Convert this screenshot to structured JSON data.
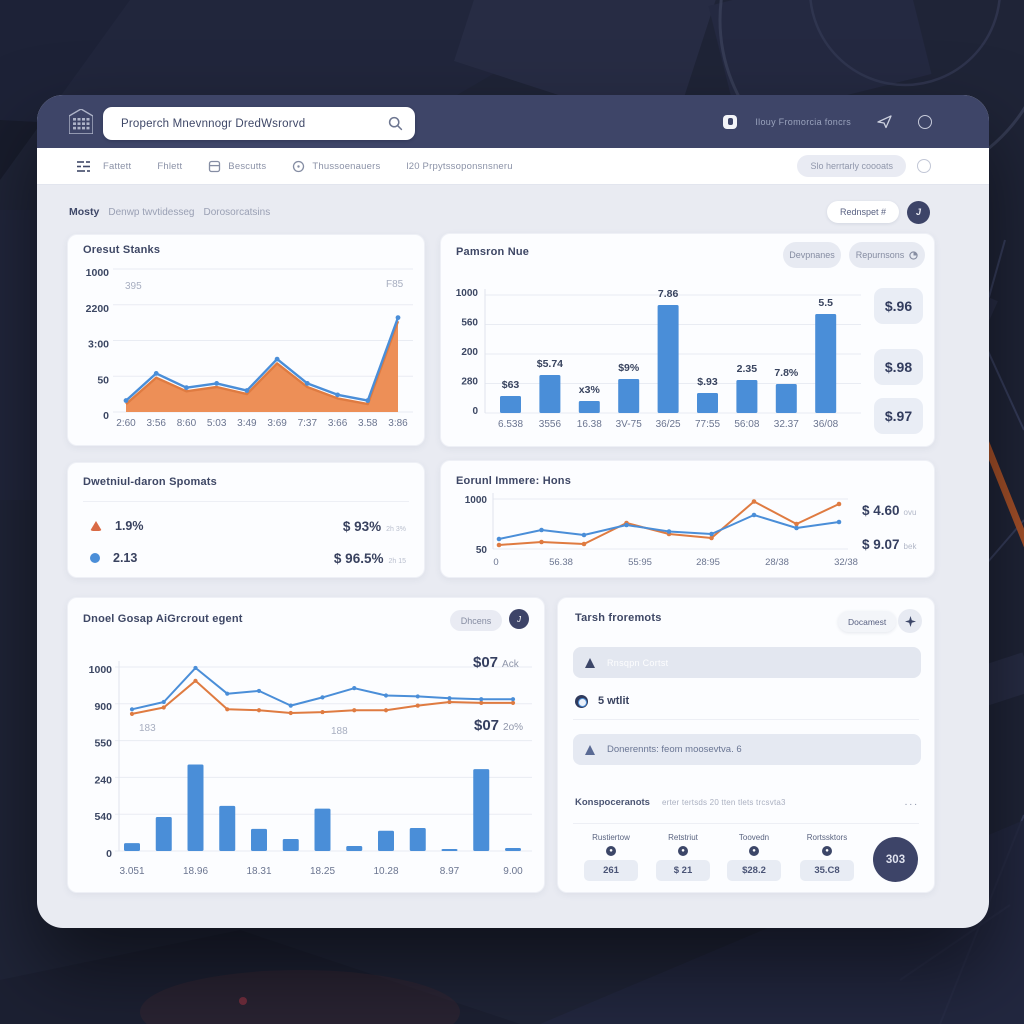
{
  "colors": {
    "blue": "#4a8ed8",
    "orange_fill": "#ec8a50",
    "orange_line": "#df7b41",
    "navy": "#3d4468",
    "grid": "#e9ecf3",
    "axis": "#dfe3ec",
    "ylabel": "#3c4763",
    "xlabel": "#6b7590"
  },
  "header": {
    "search_value": "Properch Mnevnnogr DredWsrorvd",
    "user_label": "Ilouy Fromorcia foncrs"
  },
  "toolbar": {
    "items": [
      {
        "label": "Fattett"
      },
      {
        "label": "Fhlett"
      },
      {
        "label": "Bescutts"
      },
      {
        "label": "Thussoenauers"
      },
      {
        "label": "l20 Prpytssoponsnsneru"
      }
    ],
    "action_label": "Slo herrtarly coooats"
  },
  "breadcrumb": {
    "primary": "Mosty",
    "mid": "Denwp twvtidesseg",
    "last": "Dorosorcatsins",
    "button_label": "Rednspet #",
    "avatar": "J"
  },
  "cards": {
    "overview": {
      "title": "Oresut Stanks"
    },
    "revenue": {
      "title": "Pamsron Nue",
      "btn1": "Devpnanes",
      "btn2": "Repurnsons",
      "boxes": [
        "$.96",
        "$.98",
        "$.97"
      ]
    },
    "split": {
      "title": "Dwetniul-daron Spomats",
      "rows": [
        {
          "value": "1.9%",
          "right": "$ 93%",
          "sub": "2h 3%"
        },
        {
          "value": "2.13",
          "right": "$ 96.5%",
          "sub": "2h 15"
        }
      ]
    },
    "lines": {
      "title": "Eorunl Immere: Hons",
      "val1": "$ 4.60",
      "sub1": "ovu",
      "val2": "$ 9.07",
      "sub2": "bek"
    },
    "combo": {
      "title": "Dnoel Gosap AiGrcrout egent",
      "btn": "Dhcens",
      "btn_icon": "J",
      "val1": "$07",
      "sub1": "Ack",
      "val2": "$07",
      "sub2": "2o%"
    },
    "tasks": {
      "title": "Tarsh froremots",
      "btn": "Docamest",
      "banner1": "Rnsqpn Cortst",
      "item": "5 wtlit",
      "banner2": "Donerennts: feom moosevtva. 6",
      "row_label": "Konspoceranots",
      "row_sub": "erter tertsds 20 tten tlets trcsvta3",
      "row_dots": "...",
      "stats": [
        {
          "label": "Rustiertow",
          "value": "261"
        },
        {
          "label": "Retstriut",
          "value": "$ 21"
        },
        {
          "label": "Toovedn",
          "value": "$28.2"
        },
        {
          "label": "Rortssktors",
          "value": "35.C8"
        }
      ],
      "total": "303"
    }
  },
  "chart_data": [
    {
      "type": "area",
      "title": "Oresut Stanks",
      "x_labels": [
        "2:60",
        "3:56",
        "8:60",
        "5:03",
        "3:49",
        "3:69",
        "7:37",
        "3:66",
        "3.58",
        "3:86"
      ],
      "y_ticks": [
        "0",
        "50",
        "3:00",
        "2200",
        "1000"
      ],
      "ylim": [
        0,
        1000
      ],
      "series": [
        {
          "name": "blue-line",
          "values": [
            80,
            270,
            170,
            200,
            150,
            370,
            200,
            120,
            80,
            660
          ]
        },
        {
          "name": "orange-area",
          "values": [
            55,
            240,
            145,
            175,
            125,
            340,
            175,
            95,
            55,
            635
          ]
        }
      ],
      "annotations": [
        {
          "text": "395"
        },
        {
          "text": "F85"
        }
      ]
    },
    {
      "type": "bar",
      "title": "Pamsron Nue",
      "categories": [
        "6.538",
        "3556",
        "16.38",
        "3V-75",
        "36/25",
        "77:55",
        "56:08",
        "32.37",
        "36/08"
      ],
      "values": [
        144,
        322,
        102,
        288,
        915,
        169,
        280,
        246,
        839
      ],
      "bar_labels": [
        "$63",
        "$5.74",
        "x3%",
        "$9%",
        "7.86",
        "$.93",
        "2.35",
        "7.8%",
        "5.5"
      ],
      "y_ticks": [
        "0",
        "280",
        "200",
        "560",
        "1000"
      ],
      "ylim": [
        0,
        1000
      ]
    },
    {
      "type": "line",
      "title": "Eorunl Immere: Hons",
      "x_labels": [
        "0",
        "56.38",
        "55:95",
        "28:95",
        "28/38",
        "32/38"
      ],
      "y_ticks": [
        "50",
        "1000"
      ],
      "ylim": [
        0,
        1000
      ],
      "series": [
        {
          "name": "blue",
          "values": [
            200,
            380,
            280,
            480,
            350,
            300,
            680,
            420,
            540
          ]
        },
        {
          "name": "orange",
          "values": [
            80,
            140,
            100,
            520,
            300,
            220,
            950,
            500,
            900
          ]
        }
      ]
    },
    {
      "type": "line+bar",
      "title": "Dnoel Gosap AiGrcrout egent",
      "x_labels": [
        "3.051",
        "18.96",
        "18.31",
        "18.25",
        "10.28",
        "8.97",
        "9.00"
      ],
      "y_ticks": [
        "0",
        "540",
        "240",
        "550",
        "900",
        "1000"
      ],
      "ylim": [
        0,
        1000
      ],
      "series": [
        {
          "name": "blue",
          "values": [
            770,
            810,
            995,
            855,
            870,
            790,
            835,
            885,
            845,
            840,
            830,
            825,
            825
          ]
        },
        {
          "name": "orange",
          "values": [
            745,
            780,
            925,
            770,
            765,
            750,
            755,
            765,
            765,
            790,
            810,
            805,
            805
          ]
        }
      ],
      "bar_values": [
        43,
        185,
        470,
        245,
        120,
        65,
        230,
        27,
        110,
        125,
        11,
        445,
        16
      ],
      "annotations": [
        {
          "text": "183"
        },
        {
          "text": "188"
        }
      ]
    }
  ]
}
